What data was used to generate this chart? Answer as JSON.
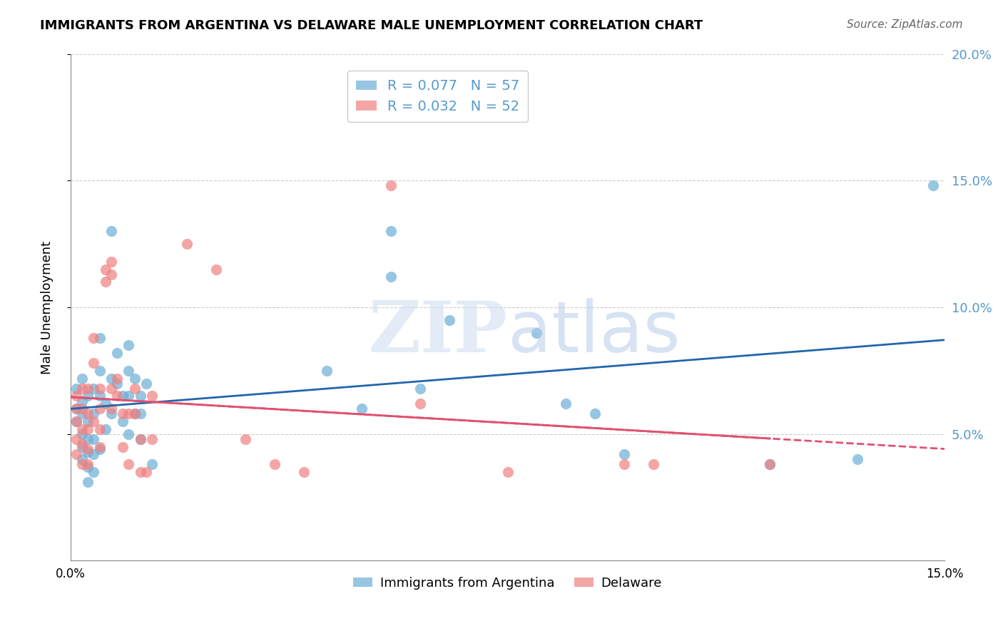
{
  "title": "IMMIGRANTS FROM ARGENTINA VS DELAWARE MALE UNEMPLOYMENT CORRELATION CHART",
  "source": "Source: ZipAtlas.com",
  "xlabel": "",
  "ylabel": "Male Unemployment",
  "xlim": [
    0,
    0.15
  ],
  "ylim": [
    0,
    0.2
  ],
  "xticks": [
    0,
    0.03,
    0.06,
    0.09,
    0.12,
    0.15
  ],
  "xtick_labels": [
    "0.0%",
    "",
    "",
    "",
    "",
    "15.0%"
  ],
  "yticks": [
    0.05,
    0.1,
    0.15,
    0.2
  ],
  "ytick_labels": [
    "5.0%",
    "10.0%",
    "15.0%",
    "20.0%"
  ],
  "legend_entries": [
    {
      "label": "R = 0.077   N = 57",
      "color": "#6baed6"
    },
    {
      "label": "R = 0.032   N = 52",
      "color": "#f08080"
    }
  ],
  "legend_bottom": [
    {
      "label": "Immigrants from Argentina",
      "color": "#6baed6"
    },
    {
      "label": "Delaware",
      "color": "#f08080"
    }
  ],
  "blue_color": "#6baed6",
  "pink_color": "#f08080",
  "trend_blue": "#2166ac",
  "trend_pink": "#e05070",
  "blue_R": 0.077,
  "blue_N": 57,
  "pink_R": 0.032,
  "pink_N": 52,
  "blue_scatter_x": [
    0.001,
    0.001,
    0.001,
    0.002,
    0.002,
    0.002,
    0.002,
    0.002,
    0.002,
    0.003,
    0.003,
    0.003,
    0.003,
    0.003,
    0.003,
    0.004,
    0.004,
    0.004,
    0.004,
    0.004,
    0.005,
    0.005,
    0.005,
    0.005,
    0.006,
    0.006,
    0.007,
    0.007,
    0.007,
    0.008,
    0.008,
    0.009,
    0.009,
    0.01,
    0.01,
    0.01,
    0.01,
    0.011,
    0.011,
    0.012,
    0.012,
    0.012,
    0.013,
    0.014,
    0.044,
    0.05,
    0.055,
    0.055,
    0.06,
    0.065,
    0.08,
    0.085,
    0.09,
    0.095,
    0.12,
    0.135,
    0.148
  ],
  "blue_scatter_y": [
    0.068,
    0.055,
    0.06,
    0.072,
    0.063,
    0.058,
    0.05,
    0.045,
    0.04,
    0.065,
    0.055,
    0.048,
    0.043,
    0.037,
    0.031,
    0.068,
    0.058,
    0.048,
    0.042,
    0.035,
    0.088,
    0.075,
    0.065,
    0.044,
    0.062,
    0.052,
    0.13,
    0.072,
    0.058,
    0.082,
    0.07,
    0.065,
    0.055,
    0.085,
    0.075,
    0.065,
    0.05,
    0.072,
    0.058,
    0.065,
    0.058,
    0.048,
    0.07,
    0.038,
    0.075,
    0.06,
    0.13,
    0.112,
    0.068,
    0.095,
    0.09,
    0.062,
    0.058,
    0.042,
    0.038,
    0.04,
    0.148
  ],
  "pink_scatter_x": [
    0.001,
    0.001,
    0.001,
    0.001,
    0.001,
    0.002,
    0.002,
    0.002,
    0.002,
    0.002,
    0.003,
    0.003,
    0.003,
    0.003,
    0.003,
    0.004,
    0.004,
    0.004,
    0.005,
    0.005,
    0.005,
    0.005,
    0.006,
    0.006,
    0.007,
    0.007,
    0.007,
    0.007,
    0.008,
    0.008,
    0.009,
    0.009,
    0.01,
    0.01,
    0.011,
    0.011,
    0.012,
    0.012,
    0.013,
    0.014,
    0.014,
    0.02,
    0.025,
    0.03,
    0.035,
    0.04,
    0.055,
    0.06,
    0.075,
    0.095,
    0.1,
    0.12
  ],
  "pink_scatter_y": [
    0.065,
    0.06,
    0.055,
    0.048,
    0.042,
    0.068,
    0.06,
    0.052,
    0.046,
    0.038,
    0.068,
    0.058,
    0.052,
    0.044,
    0.038,
    0.088,
    0.078,
    0.055,
    0.068,
    0.06,
    0.052,
    0.045,
    0.115,
    0.11,
    0.118,
    0.113,
    0.068,
    0.06,
    0.072,
    0.065,
    0.058,
    0.045,
    0.058,
    0.038,
    0.068,
    0.058,
    0.048,
    0.035,
    0.035,
    0.065,
    0.048,
    0.125,
    0.115,
    0.048,
    0.038,
    0.035,
    0.148,
    0.062,
    0.035,
    0.038,
    0.038,
    0.038
  ],
  "watermark": "ZIPatlas",
  "background_color": "#ffffff",
  "grid_color": "#cccccc",
  "grid_style": "--"
}
